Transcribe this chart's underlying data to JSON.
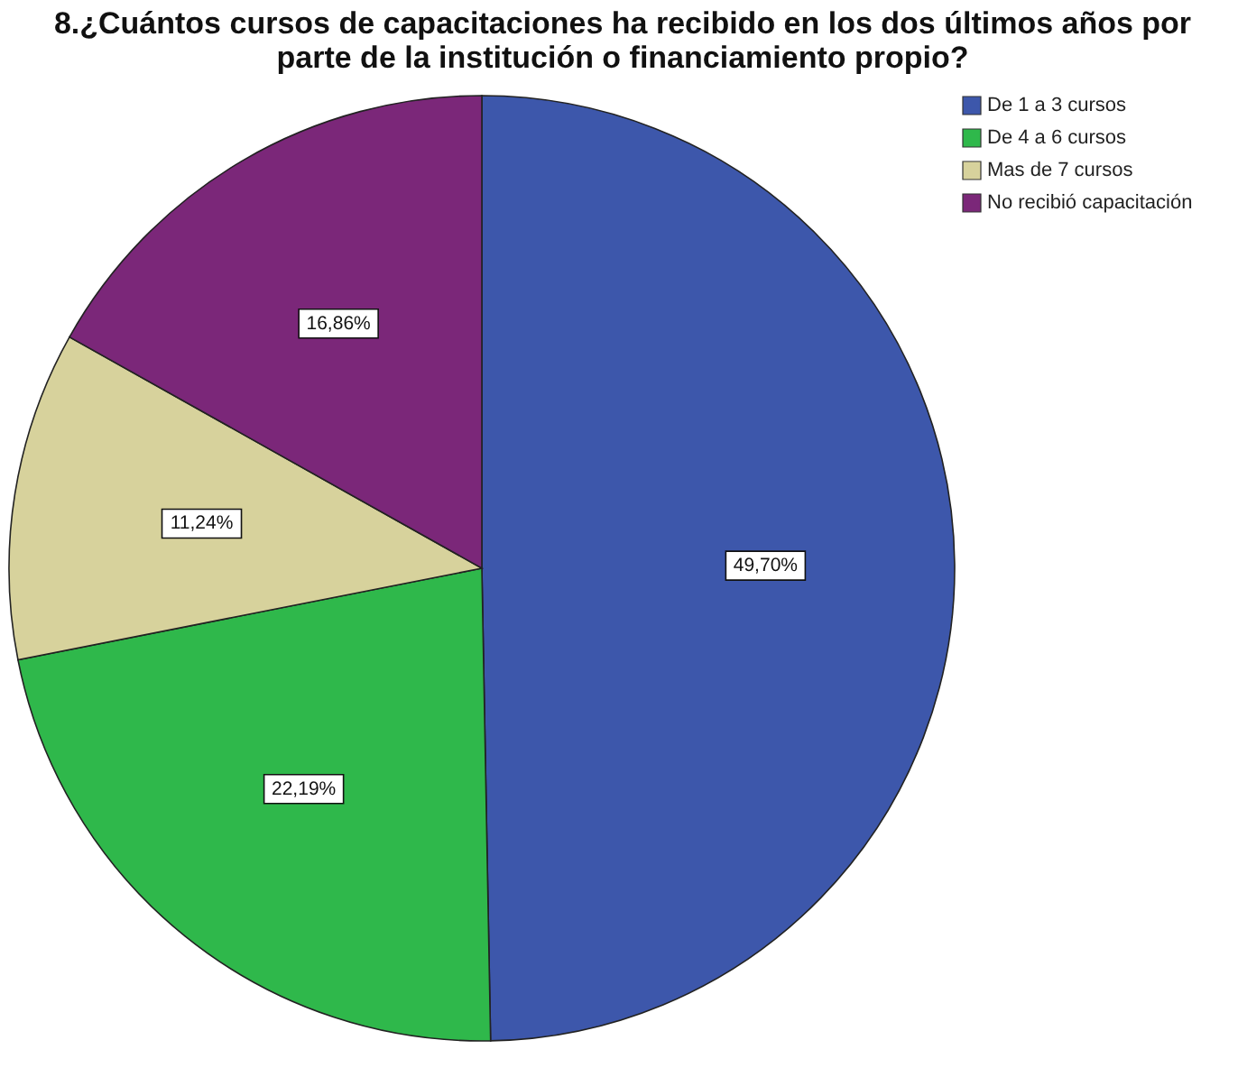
{
  "chart_data": {
    "type": "pie",
    "title": "8.¿Cuántos cursos de capacitaciones ha recibido en los dos últimos años por parte de la institución o financiamiento propio?",
    "categories": [
      "De 1 a 3 cursos",
      "De 4 a 6 cursos",
      "Mas de 7 cursos",
      "No recibió capacitación"
    ],
    "values": [
      49.7,
      22.19,
      11.24,
      16.86
    ],
    "colors": [
      "#3d57ab",
      "#2fb84b",
      "#d7d29c",
      "#7b2779"
    ],
    "value_labels": [
      "49,70%",
      "22,19%",
      "11,24%",
      "16,86%"
    ],
    "legend": "top right"
  }
}
